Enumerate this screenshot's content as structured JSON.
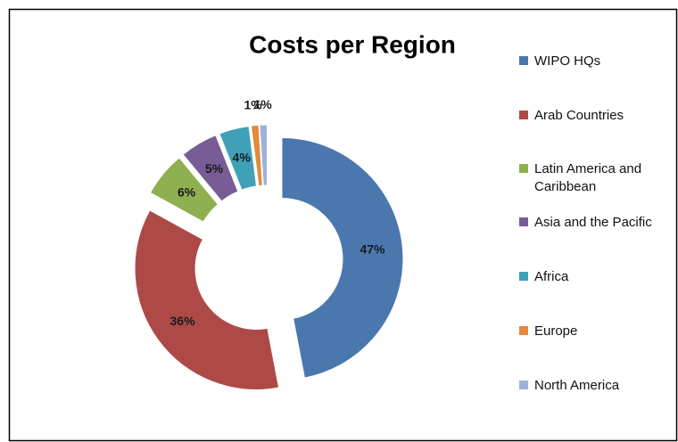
{
  "chart_data": {
    "type": "donut",
    "title": "Costs per Region",
    "categories": [
      "WIPO HQs",
      "Arab Countries",
      "Latin America and Caribbean",
      "Asia and the Pacific",
      "Africa",
      "Europe",
      "North America"
    ],
    "values": [
      47,
      36,
      6,
      5,
      4,
      1,
      1
    ],
    "value_labels": [
      "47%",
      "36%",
      "6%",
      "5%",
      "4%",
      "1%",
      "1%"
    ],
    "colors": [
      "#4a78ae",
      "#ad4a48",
      "#8eb050",
      "#775c96",
      "#40a0b8",
      "#e3893a",
      "#9cb2d8"
    ],
    "legend": "right"
  }
}
